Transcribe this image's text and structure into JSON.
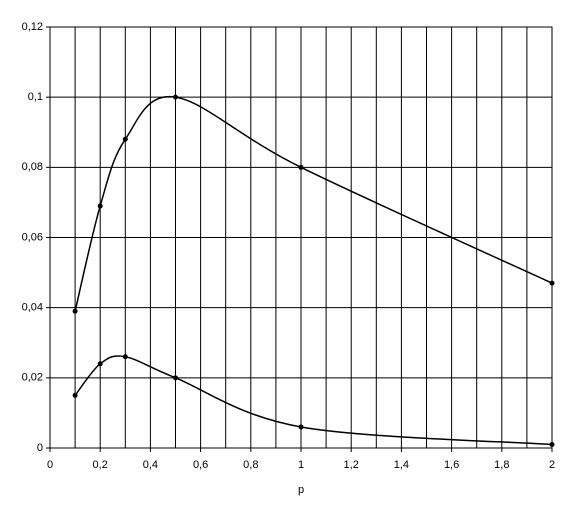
{
  "chart_data": {
    "type": "line",
    "x_label": "p",
    "x": [
      0.1,
      0.2,
      0.3,
      0.5,
      1,
      2
    ],
    "series": [
      {
        "color": "#000000",
        "values": [
          0.039,
          0.069,
          0.088,
          0.1,
          0.08,
          0.047
        ]
      },
      {
        "color": "#000000",
        "values": [
          0.015,
          0.024,
          0.026,
          0.02,
          0.006,
          0.001
        ]
      }
    ],
    "smooth": true,
    "markers": true,
    "grid": true,
    "xlim": [
      0,
      2
    ],
    "xticks": [
      0,
      {
        "value": 0.2,
        "label": "0,2"
      },
      {
        "value": 0.4,
        "label": "0,4"
      },
      {
        "value": 0.6,
        "label": "0,6"
      },
      {
        "value": 0.8,
        "label": "0,8"
      },
      1,
      {
        "value": 1.2,
        "label": "1,2"
      },
      {
        "value": 1.4,
        "label": "1,4"
      },
      {
        "value": 1.6,
        "label": "1,6"
      },
      {
        "value": 1.8,
        "label": "1,8"
      },
      2
    ],
    "xminor": [
      0.1,
      0.3,
      0.5,
      0.7,
      0.9,
      1.1,
      1.3,
      1.5,
      1.7,
      1.9
    ],
    "ylim": [
      0,
      0.12
    ],
    "yticks": [
      0,
      {
        "value": 0.02,
        "label": "0,02"
      },
      {
        "value": 0.04,
        "label": "0,04"
      },
      {
        "value": 0.06,
        "label": "0,06"
      },
      {
        "value": 0.08,
        "label": "0,08"
      },
      {
        "value": 0.1,
        "label": "0,1"
      },
      {
        "value": 0.12,
        "label": "0,12"
      }
    ]
  }
}
